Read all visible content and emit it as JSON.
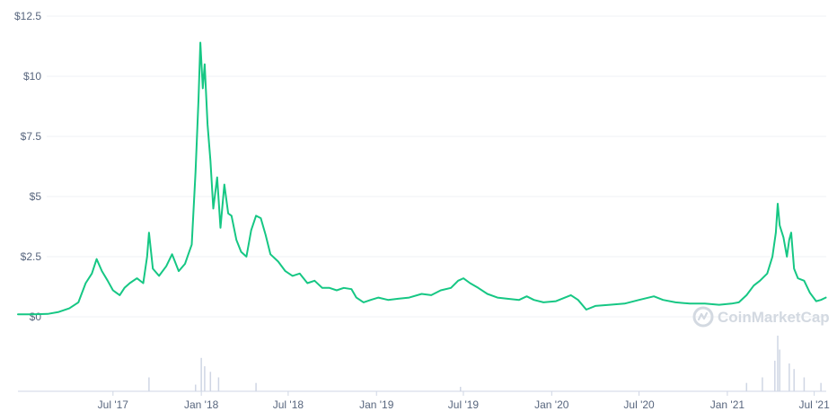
{
  "chart_data": {
    "type": "line",
    "title": "",
    "xlabel": "",
    "ylabel": "",
    "ylim": [
      0,
      12.5
    ],
    "y_ticks": [
      {
        "value": 0,
        "label": "$0"
      },
      {
        "value": 2.5,
        "label": "$2.5"
      },
      {
        "value": 5,
        "label": "$5"
      },
      {
        "value": 7.5,
        "label": "$7.5"
      },
      {
        "value": 10,
        "label": "$10"
      },
      {
        "value": 12.5,
        "label": "$12.5"
      }
    ],
    "x_ticks": [
      {
        "date": "2017-07-01",
        "label": "Jul '17"
      },
      {
        "date": "2018-01-01",
        "label": "Jan '18"
      },
      {
        "date": "2018-07-01",
        "label": "Jul '18"
      },
      {
        "date": "2019-01-01",
        "label": "Jan '19"
      },
      {
        "date": "2019-07-01",
        "label": "Jul '19"
      },
      {
        "date": "2020-01-01",
        "label": "Jan '20"
      },
      {
        "date": "2020-07-01",
        "label": "Jul '20"
      },
      {
        "date": "2021-01-01",
        "label": "Jan '21"
      },
      {
        "date": "2021-07-01",
        "label": "Jul '21"
      }
    ],
    "grid": true,
    "line_color": "#16c784",
    "volume_color": "#cfd6e4",
    "series": [
      {
        "kind": "price",
        "points": [
          [
            "2016-12-15",
            0.1
          ],
          [
            "2017-01-15",
            0.1
          ],
          [
            "2017-02-15",
            0.12
          ],
          [
            "2017-03-10",
            0.2
          ],
          [
            "2017-04-01",
            0.35
          ],
          [
            "2017-04-20",
            0.6
          ],
          [
            "2017-05-05",
            1.4
          ],
          [
            "2017-05-18",
            1.8
          ],
          [
            "2017-05-28",
            2.4
          ],
          [
            "2017-06-08",
            1.9
          ],
          [
            "2017-06-20",
            1.5
          ],
          [
            "2017-07-01",
            1.1
          ],
          [
            "2017-07-15",
            0.9
          ],
          [
            "2017-07-25",
            1.2
          ],
          [
            "2017-08-05",
            1.4
          ],
          [
            "2017-08-20",
            1.6
          ],
          [
            "2017-09-02",
            1.4
          ],
          [
            "2017-09-10",
            2.5
          ],
          [
            "2017-09-14",
            3.5
          ],
          [
            "2017-09-22",
            2.0
          ],
          [
            "2017-10-05",
            1.7
          ],
          [
            "2017-10-20",
            2.1
          ],
          [
            "2017-11-01",
            2.6
          ],
          [
            "2017-11-15",
            1.9
          ],
          [
            "2017-11-28",
            2.2
          ],
          [
            "2017-12-05",
            2.6
          ],
          [
            "2017-12-12",
            3.0
          ],
          [
            "2017-12-20",
            6.0
          ],
          [
            "2017-12-26",
            9.0
          ],
          [
            "2017-12-30",
            11.4
          ],
          [
            "2018-01-04",
            9.5
          ],
          [
            "2018-01-08",
            10.5
          ],
          [
            "2018-01-14",
            8.0
          ],
          [
            "2018-01-20",
            6.5
          ],
          [
            "2018-01-26",
            4.5
          ],
          [
            "2018-02-03",
            5.8
          ],
          [
            "2018-02-10",
            3.7
          ],
          [
            "2018-02-18",
            5.5
          ],
          [
            "2018-02-26",
            4.3
          ],
          [
            "2018-03-05",
            4.2
          ],
          [
            "2018-03-15",
            3.2
          ],
          [
            "2018-03-25",
            2.7
          ],
          [
            "2018-04-05",
            2.5
          ],
          [
            "2018-04-15",
            3.6
          ],
          [
            "2018-04-25",
            4.2
          ],
          [
            "2018-05-05",
            4.1
          ],
          [
            "2018-05-15",
            3.4
          ],
          [
            "2018-05-25",
            2.6
          ],
          [
            "2018-06-10",
            2.3
          ],
          [
            "2018-06-25",
            1.9
          ],
          [
            "2018-07-10",
            1.7
          ],
          [
            "2018-07-25",
            1.8
          ],
          [
            "2018-08-10",
            1.4
          ],
          [
            "2018-08-25",
            1.5
          ],
          [
            "2018-09-10",
            1.2
          ],
          [
            "2018-09-25",
            1.2
          ],
          [
            "2018-10-10",
            1.1
          ],
          [
            "2018-10-25",
            1.2
          ],
          [
            "2018-11-10",
            1.15
          ],
          [
            "2018-11-20",
            0.8
          ],
          [
            "2018-12-05",
            0.6
          ],
          [
            "2018-12-20",
            0.7
          ],
          [
            "2019-01-05",
            0.8
          ],
          [
            "2019-01-25",
            0.7
          ],
          [
            "2019-02-15",
            0.75
          ],
          [
            "2019-03-10",
            0.8
          ],
          [
            "2019-04-05",
            0.95
          ],
          [
            "2019-04-25",
            0.9
          ],
          [
            "2019-05-15",
            1.1
          ],
          [
            "2019-06-05",
            1.2
          ],
          [
            "2019-06-20",
            1.5
          ],
          [
            "2019-07-01",
            1.6
          ],
          [
            "2019-07-15",
            1.4
          ],
          [
            "2019-08-01",
            1.2
          ],
          [
            "2019-08-20",
            0.95
          ],
          [
            "2019-09-10",
            0.8
          ],
          [
            "2019-10-01",
            0.75
          ],
          [
            "2019-10-25",
            0.7
          ],
          [
            "2019-11-10",
            0.85
          ],
          [
            "2019-11-25",
            0.7
          ],
          [
            "2019-12-15",
            0.6
          ],
          [
            "2020-01-10",
            0.65
          ],
          [
            "2020-02-10",
            0.9
          ],
          [
            "2020-02-25",
            0.7
          ],
          [
            "2020-03-13",
            0.3
          ],
          [
            "2020-04-01",
            0.45
          ],
          [
            "2020-05-01",
            0.5
          ],
          [
            "2020-06-01",
            0.55
          ],
          [
            "2020-07-01",
            0.7
          ],
          [
            "2020-08-01",
            0.85
          ],
          [
            "2020-08-20",
            0.7
          ],
          [
            "2020-09-15",
            0.6
          ],
          [
            "2020-10-15",
            0.55
          ],
          [
            "2020-11-15",
            0.55
          ],
          [
            "2020-12-15",
            0.5
          ],
          [
            "2021-01-10",
            0.55
          ],
          [
            "2021-01-25",
            0.6
          ],
          [
            "2021-02-10",
            0.9
          ],
          [
            "2021-02-25",
            1.3
          ],
          [
            "2021-03-10",
            1.5
          ],
          [
            "2021-03-25",
            1.8
          ],
          [
            "2021-04-05",
            2.5
          ],
          [
            "2021-04-12",
            3.5
          ],
          [
            "2021-04-16",
            4.7
          ],
          [
            "2021-04-20",
            3.8
          ],
          [
            "2021-04-28",
            3.3
          ],
          [
            "2021-05-05",
            2.5
          ],
          [
            "2021-05-10",
            3.2
          ],
          [
            "2021-05-14",
            3.5
          ],
          [
            "2021-05-20",
            2.0
          ],
          [
            "2021-05-28",
            1.6
          ],
          [
            "2021-06-10",
            1.5
          ],
          [
            "2021-06-22",
            1.0
          ],
          [
            "2021-07-05",
            0.65
          ],
          [
            "2021-07-15",
            0.7
          ],
          [
            "2021-07-25",
            0.8
          ]
        ]
      },
      {
        "kind": "volume",
        "points": [
          [
            "2017-09-14",
            0.25
          ],
          [
            "2017-12-20",
            0.12
          ],
          [
            "2018-01-01",
            0.6
          ],
          [
            "2018-01-08",
            0.45
          ],
          [
            "2018-01-20",
            0.35
          ],
          [
            "2018-02-06",
            0.25
          ],
          [
            "2018-04-25",
            0.15
          ],
          [
            "2019-06-25",
            0.08
          ],
          [
            "2021-02-10",
            0.15
          ],
          [
            "2021-03-15",
            0.25
          ],
          [
            "2021-04-10",
            0.55
          ],
          [
            "2021-04-16",
            1.0
          ],
          [
            "2021-04-20",
            0.75
          ],
          [
            "2021-05-10",
            0.5
          ],
          [
            "2021-05-20",
            0.4
          ],
          [
            "2021-06-10",
            0.25
          ],
          [
            "2021-07-15",
            0.15
          ]
        ]
      }
    ],
    "watermark": "CoinMarketCap"
  }
}
